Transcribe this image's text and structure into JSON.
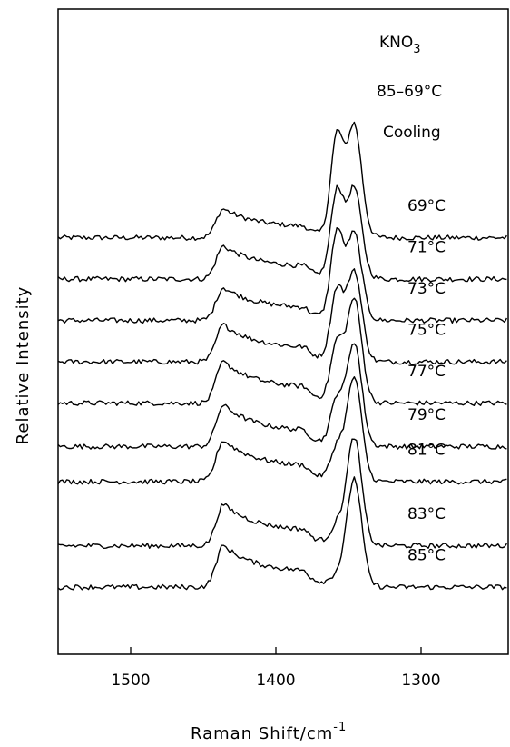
{
  "chart_data": {
    "type": "line",
    "title": "",
    "xlabel": "Raman Shift/cm",
    "xlabel_superscript": "-1",
    "ylabel": "Relative Intensity",
    "xlim": [
      1550,
      1240
    ],
    "x_reversed": true,
    "x_ticks": [
      1500,
      1400,
      1300
    ],
    "x_tick_labels": [
      "1500",
      "1400",
      "1300"
    ],
    "y_ticks_shown": false,
    "grid": false,
    "legend": "none",
    "annotations": {
      "compound": "KNO",
      "compound_subscript": "3",
      "range": "85–69°C",
      "mode": "Cooling"
    },
    "series": [
      {
        "label": "69°C",
        "baseline": 8.8,
        "broad_peak": 0.7,
        "double_peak": [
          2.3,
          2.6
        ]
      },
      {
        "label": "71°C",
        "baseline": 7.8,
        "broad_peak": 0.8,
        "double_peak": [
          2.0,
          2.1
        ]
      },
      {
        "label": "73°C",
        "baseline": 6.8,
        "broad_peak": 0.8,
        "double_peak": [
          2.0,
          2.0
        ]
      },
      {
        "label": "75°C",
        "baseline": 5.8,
        "broad_peak": 0.9,
        "double_peak": [
          1.6,
          2.1
        ]
      },
      {
        "label": "77°C",
        "baseline": 4.8,
        "broad_peak": 1.0,
        "double_peak": [
          1.3,
          2.4
        ]
      },
      {
        "label": "79°C",
        "baseline": 3.75,
        "broad_peak": 1.0,
        "double_peak": [
          1.0,
          2.4
        ]
      },
      {
        "label": "81°C",
        "baseline": 2.9,
        "broad_peak": 1.0,
        "double_peak": [
          0.7,
          2.4
        ]
      },
      {
        "label": "83°C",
        "baseline": 1.35,
        "broad_peak": 1.0,
        "double_peak": [
          0.35,
          2.5
        ]
      },
      {
        "label": "85°C",
        "baseline": 0.35,
        "broad_peak": 1.0,
        "double_peak": [
          0.15,
          2.5
        ]
      }
    ]
  }
}
